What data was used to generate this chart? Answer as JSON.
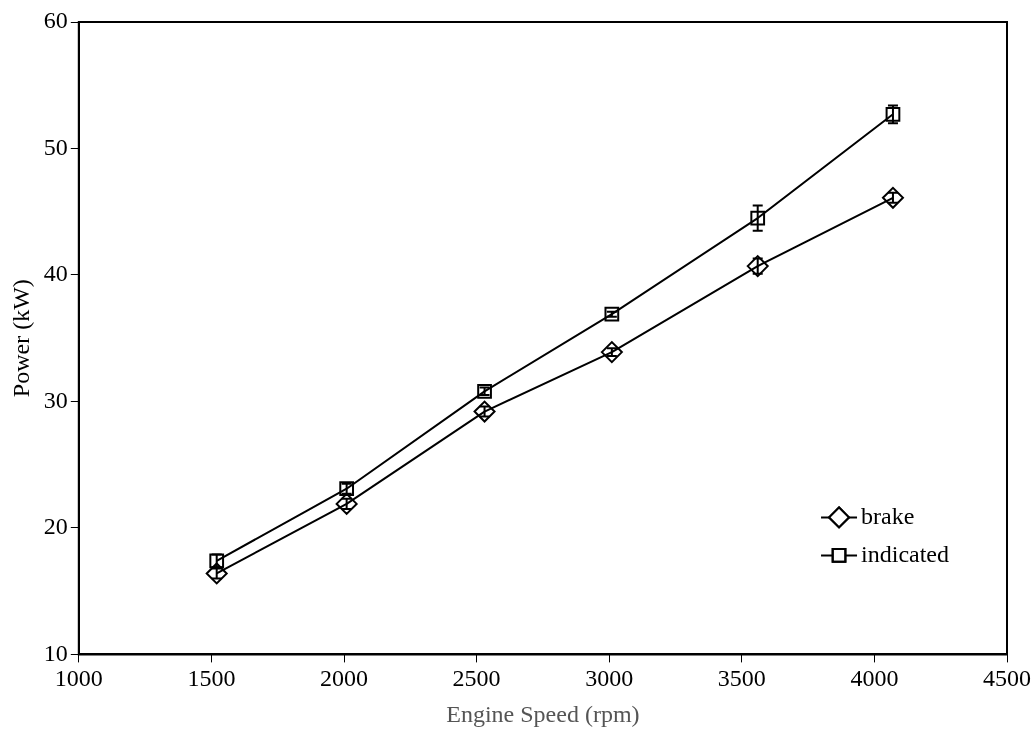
{
  "chart_data": {
    "type": "line",
    "xlabel": "Engine Speed (rpm)",
    "ylabel": "Power (kW)",
    "x": [
      1520,
      2010,
      2530,
      3010,
      3560,
      4070
    ],
    "series": [
      {
        "name": "brake",
        "color": "#000000",
        "marker": "diamond",
        "values": [
          16.4,
          21.9,
          29.2,
          33.9,
          40.7,
          46.1
        ],
        "errors": [
          0.4,
          0.4,
          0.4,
          0.3,
          0.6,
          0.4
        ]
      },
      {
        "name": "indicated",
        "color": "#000000",
        "marker": "square",
        "values": [
          17.4,
          23.1,
          30.8,
          36.9,
          44.5,
          52.7
        ],
        "errors": [
          0.5,
          0.4,
          0.3,
          0.2,
          1.0,
          0.7
        ]
      }
    ],
    "xlim": [
      1000,
      4500
    ],
    "xticks": [
      1000,
      1500,
      2000,
      2500,
      3000,
      3500,
      4000,
      4500
    ],
    "ylim": [
      10,
      60
    ],
    "yticks": [
      10,
      20,
      30,
      40,
      50,
      60
    ],
    "grid": false,
    "legend": "bottom right",
    "line_style": "solid"
  }
}
